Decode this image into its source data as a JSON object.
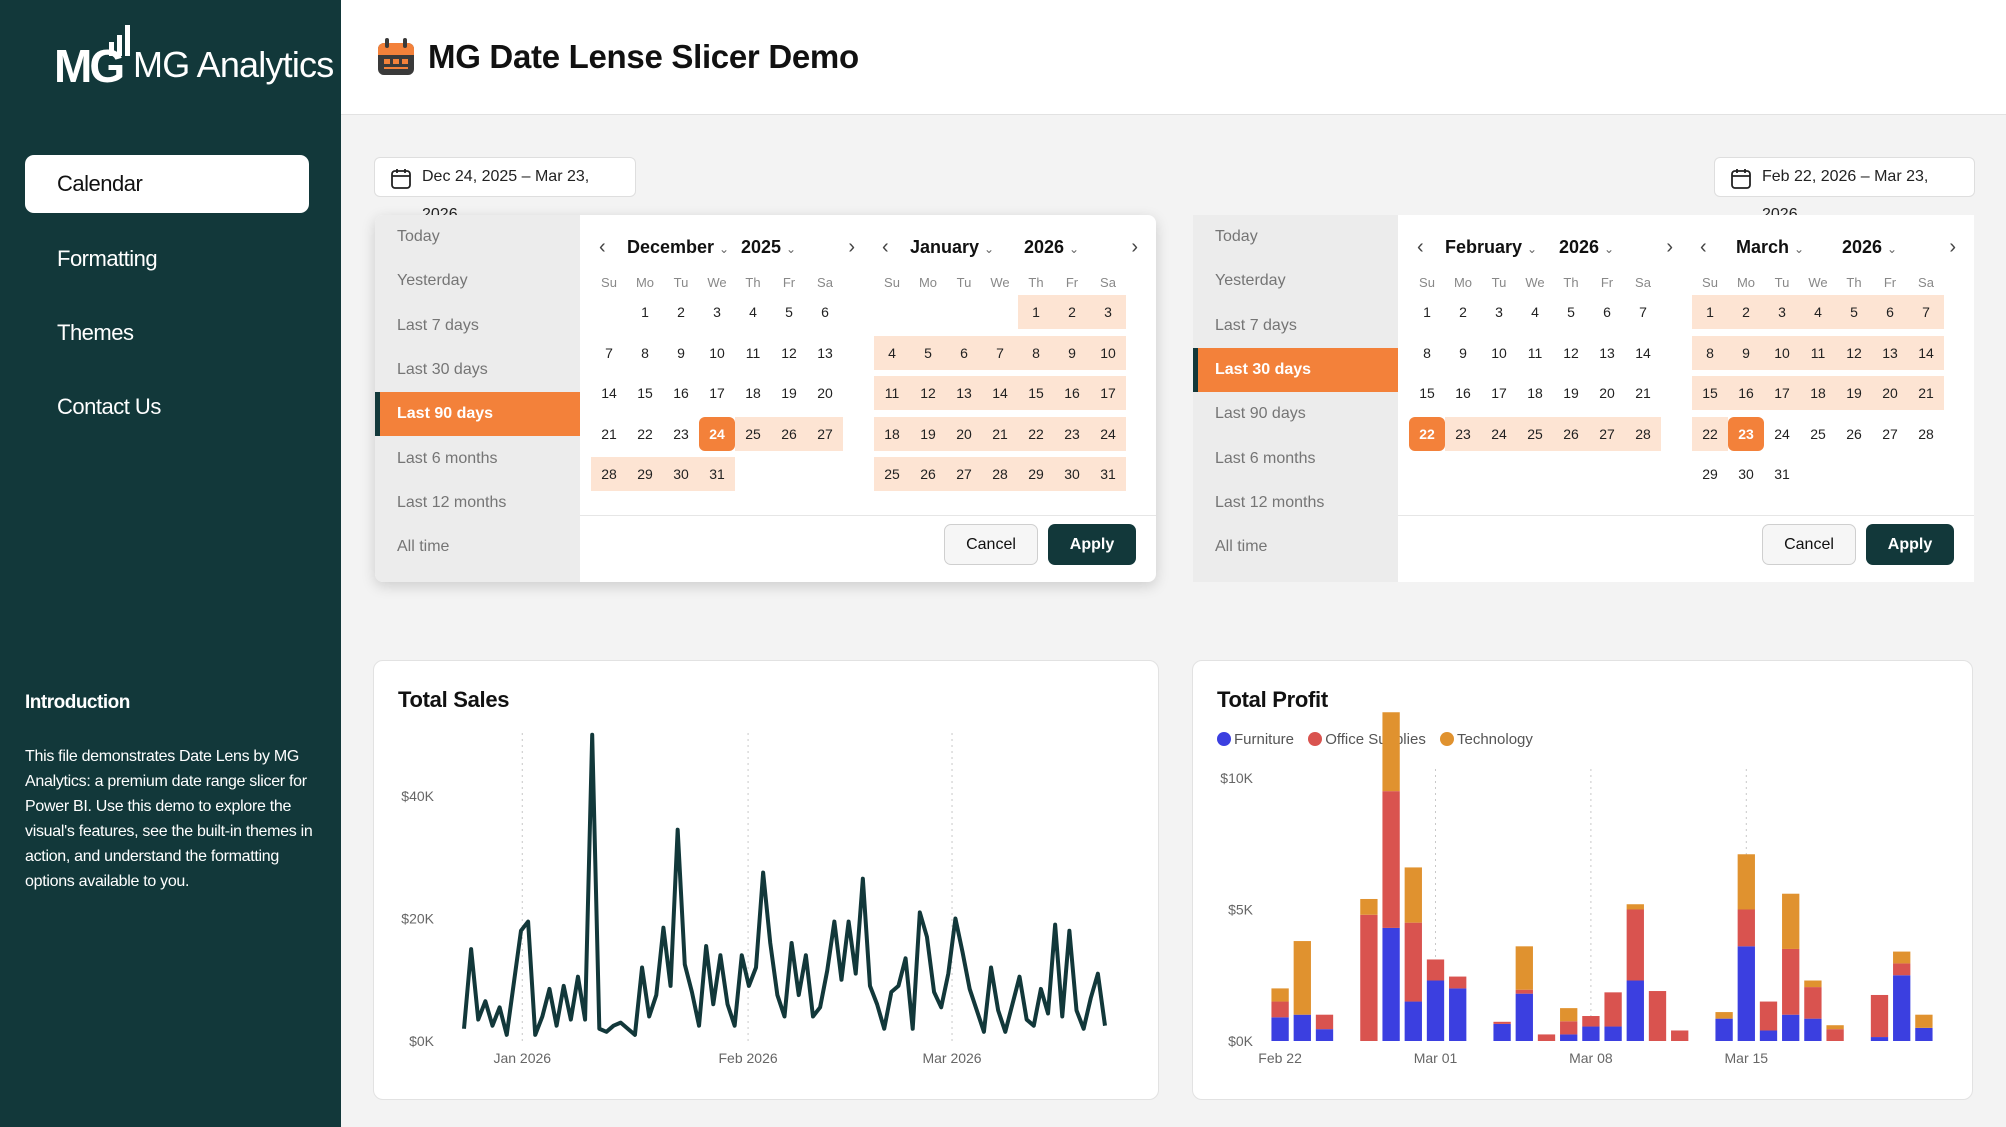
{
  "brand": {
    "name": "MG Analytics"
  },
  "sidebar": {
    "nav": [
      {
        "label": "Calendar",
        "active": true
      },
      {
        "label": "Formatting",
        "active": false
      },
      {
        "label": "Themes",
        "active": false
      },
      {
        "label": "Contact Us",
        "active": false
      }
    ],
    "intro_title": "Introduction",
    "intro_body": "This file demonstrates Date Lens by MG Analytics: a premium date range slicer for Power BI. Use this demo to explore the visual's features, see the built-in themes in action, and understand the formatting options available to you."
  },
  "header": {
    "title": "MG Date Lense Slicer Demo",
    "icon": "calendar-icon"
  },
  "colors": {
    "sidebar": "#12383a",
    "accent": "#f3813a",
    "range": "#fde4d3",
    "furniture": "#3b3fe0",
    "office": "#d9534f",
    "technology": "#e0922f",
    "line": "#12383a"
  },
  "pickers": [
    {
      "range_label": "Dec 24, 2025 – Mar 23, 2026",
      "presets": [
        "Today",
        "Yesterday",
        "Last 7 days",
        "Last 30 days",
        "Last 90 days",
        "Last 6 months",
        "Last 12 months",
        "All time"
      ],
      "active_preset": "Last 90 days",
      "months": [
        {
          "month": "December",
          "year": "2025",
          "start_weekday": 1,
          "days": 31,
          "range_from": 24,
          "range_to": 31,
          "selected": [
            24
          ]
        },
        {
          "month": "January",
          "year": "2026",
          "start_weekday": 4,
          "days": 31,
          "range_from": 1,
          "range_to": 31,
          "selected": []
        }
      ],
      "cancel": "Cancel",
      "apply": "Apply"
    },
    {
      "range_label": "Feb 22, 2026 – Mar 23, 2026",
      "presets": [
        "Today",
        "Yesterday",
        "Last 7 days",
        "Last 30 days",
        "Last 90 days",
        "Last 6 months",
        "Last 12 months",
        "All time"
      ],
      "active_preset": "Last 30 days",
      "months": [
        {
          "month": "February",
          "year": "2026",
          "start_weekday": 0,
          "days": 28,
          "range_from": 22,
          "range_to": 28,
          "selected": [
            22
          ]
        },
        {
          "month": "March",
          "year": "2026",
          "start_weekday": 0,
          "days": 31,
          "range_from": 1,
          "range_to": 23,
          "selected": [
            23
          ]
        }
      ],
      "cancel": "Cancel",
      "apply": "Apply"
    }
  ],
  "weekdays": [
    "Su",
    "Mo",
    "Tu",
    "We",
    "Th",
    "Fr",
    "Sa"
  ],
  "chart_data": [
    {
      "type": "line",
      "title": "Total Sales",
      "x_ticks": [
        "Jan 2026",
        "Feb 2026",
        "Mar 2026"
      ],
      "x_tick_positions_days_since_start": [
        8,
        39,
        67
      ],
      "y_ticks": [
        "$0K",
        "$20K",
        "$40K"
      ],
      "ylim": [
        0,
        40000
      ],
      "x_range_days": [
        0,
        88
      ],
      "grid": "vertical dotted at x ticks",
      "values": [
        2000,
        15000,
        3500,
        6500,
        2500,
        5500,
        1000,
        9500,
        18000,
        19500,
        1000,
        4000,
        8500,
        2500,
        9000,
        3500,
        10500,
        3500,
        50000,
        2000,
        1500,
        2500,
        3000,
        2000,
        1000,
        12000,
        4000,
        7500,
        18500,
        9000,
        34500,
        12500,
        8000,
        2500,
        15500,
        6000,
        14000,
        6000,
        2500,
        14000,
        9000,
        12000,
        27500,
        16000,
        7500,
        4000,
        16000,
        7500,
        14000,
        4000,
        5500,
        11500,
        19500,
        10000,
        19500,
        11000,
        26500,
        9000,
        6000,
        2000,
        8000,
        9000,
        13500,
        2000,
        21000,
        17000,
        8000,
        5500,
        11000,
        20000,
        14500,
        8500,
        5000,
        1500,
        12000,
        5000,
        1500,
        6000,
        10500,
        3500,
        2500,
        8500,
        4500,
        19000,
        4000,
        18000,
        5000,
        2000,
        7000,
        11000,
        2500
      ]
    },
    {
      "type": "bar",
      "stacked": true,
      "title": "Total Profit",
      "legend": [
        "Furniture",
        "Office Supplies",
        "Technology"
      ],
      "legend_position": "top-left",
      "x_ticks": [
        "Feb 22",
        "Mar 01",
        "Mar 08",
        "Mar 15"
      ],
      "y_ticks": [
        "$0K",
        "$5K",
        "$10K"
      ],
      "ylim": [
        0,
        10000
      ],
      "grid": "vertical dotted at x ticks",
      "categories": [
        "Feb 22",
        "Feb 23",
        "Feb 24",
        "Feb 25",
        "Feb 26",
        "Feb 27",
        "Feb 28",
        "Mar 01",
        "Mar 02",
        "Mar 03",
        "Mar 04",
        "Mar 05",
        "Mar 06",
        "Mar 07",
        "Mar 08",
        "Mar 09",
        "Mar 10",
        "Mar 11",
        "Mar 12",
        "Mar 13",
        "Mar 14",
        "Mar 15",
        "Mar 16",
        "Mar 17",
        "Mar 18",
        "Mar 19",
        "Mar 20",
        "Mar 21",
        "Mar 22",
        "Mar 23"
      ],
      "series": [
        {
          "name": "Furniture",
          "values": [
            900,
            1000,
            450,
            0,
            0,
            4300,
            1500,
            2300,
            2000,
            0,
            650,
            1800,
            0,
            250,
            550,
            550,
            2300,
            0,
            0,
            0,
            850,
            3600,
            400,
            1000,
            850,
            0,
            0,
            150,
            2500,
            500
          ]
        },
        {
          "name": "Office Supplies",
          "values": [
            600,
            0,
            550,
            0,
            4800,
            5200,
            3000,
            800,
            450,
            0,
            80,
            150,
            250,
            500,
            400,
            1300,
            2700,
            1900,
            400,
            0,
            0,
            1400,
            1100,
            2500,
            1200,
            450,
            0,
            1600,
            450,
            0
          ]
        },
        {
          "name": "Technology",
          "values": [
            500,
            2800,
            0,
            0,
            600,
            3000,
            2100,
            0,
            0,
            0,
            0,
            1650,
            0,
            500,
            0,
            0,
            200,
            0,
            0,
            0,
            250,
            2100,
            0,
            2100,
            250,
            150,
            0,
            0,
            450,
            500
          ]
        }
      ]
    }
  ]
}
